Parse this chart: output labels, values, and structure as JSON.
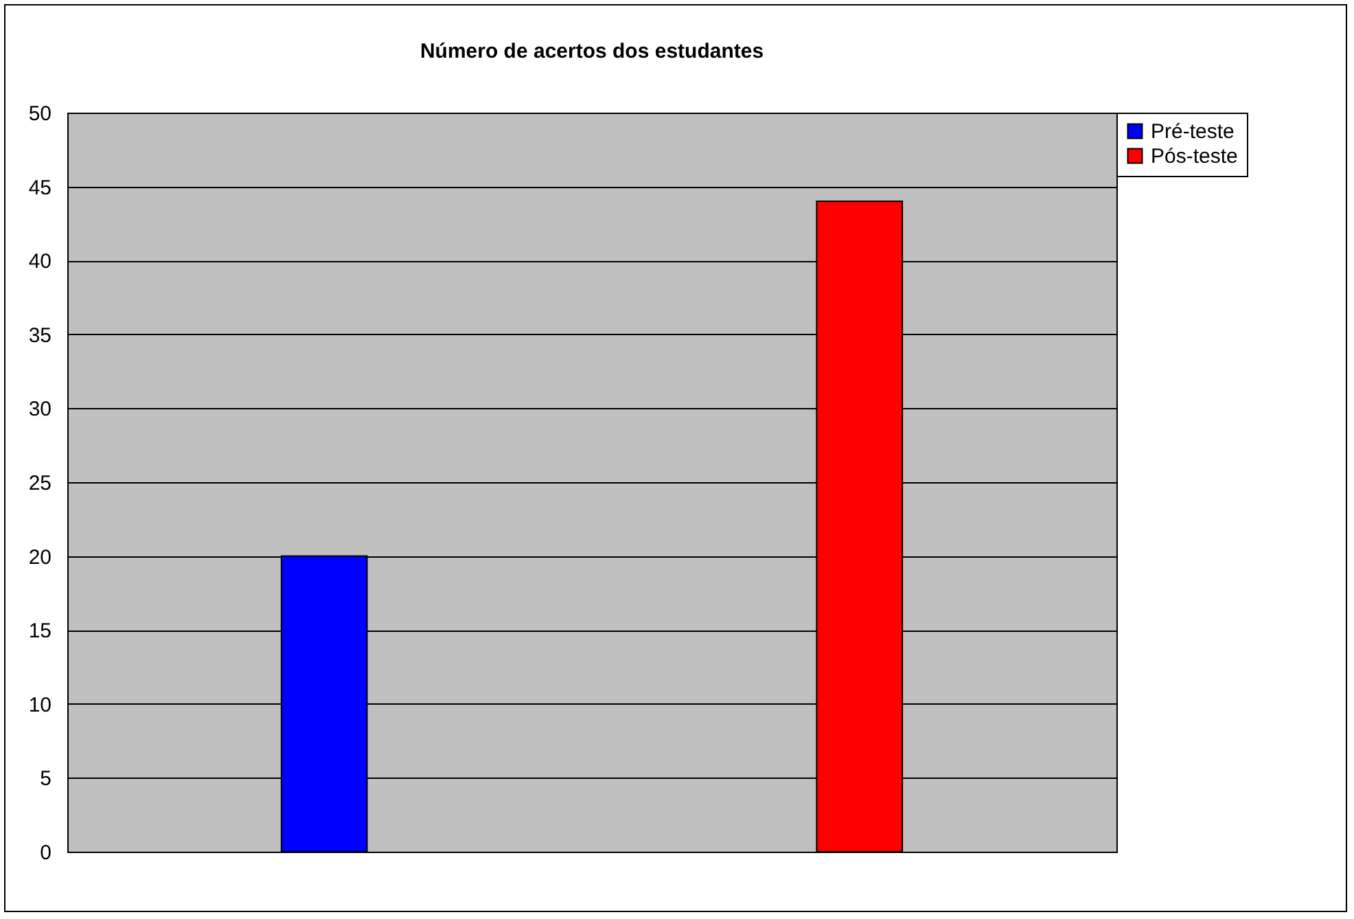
{
  "chart_data": {
    "type": "bar",
    "title": "Número de acertos dos estudantes",
    "categories": [
      null
    ],
    "series": [
      {
        "name": "Pré-teste",
        "color": "#0000ff",
        "values": [
          20
        ]
      },
      {
        "name": "Pós-teste",
        "color": "#ff0000",
        "values": [
          44
        ]
      }
    ],
    "ylim": [
      0,
      50
    ],
    "yticks": [
      0,
      5,
      10,
      15,
      20,
      25,
      30,
      35,
      40,
      45,
      50
    ],
    "grid": "y",
    "legend": "right",
    "tick_labels": "y"
  }
}
